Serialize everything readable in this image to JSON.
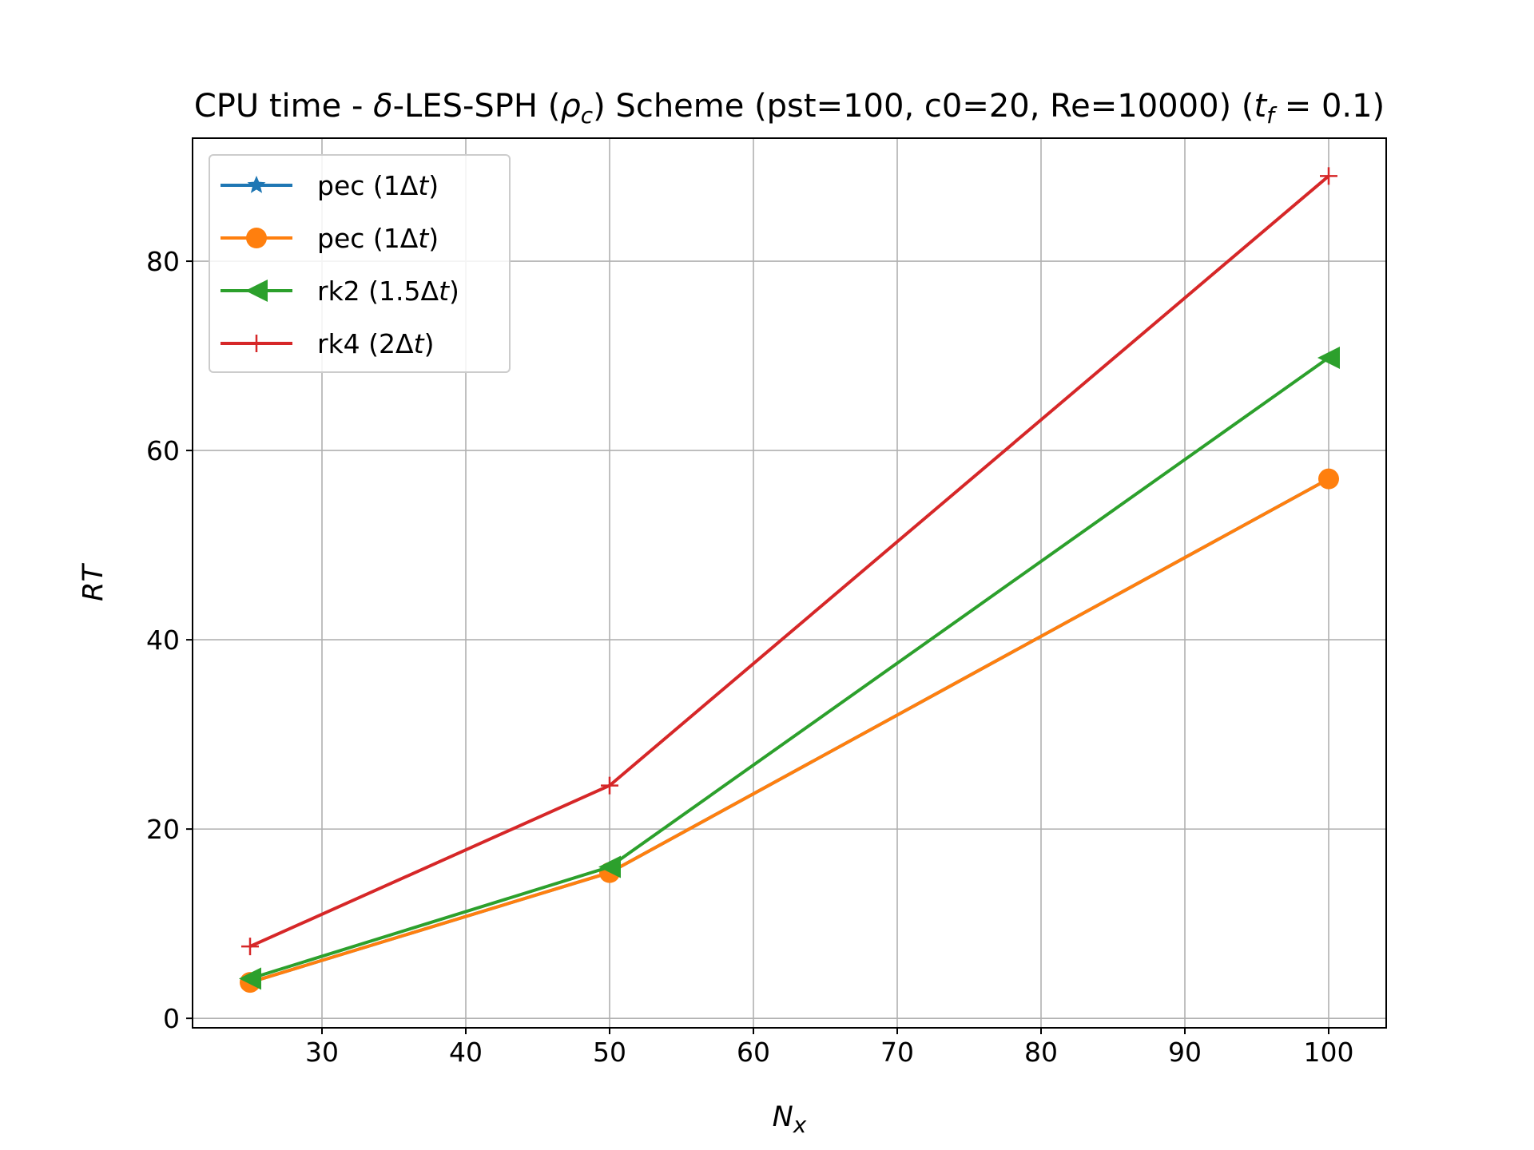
{
  "chart_data": {
    "type": "line",
    "title": "CPU time - δ-LES-SPH (ρc) Scheme (pst=100, c0=20, Re=10000) (tf = 0.1)",
    "xlabel": "Nx",
    "ylabel": "RT",
    "xlim": [
      21,
      104
    ],
    "ylim": [
      -1,
      93
    ],
    "xticks": [
      30,
      40,
      50,
      60,
      70,
      80,
      90,
      100
    ],
    "yticks": [
      0,
      20,
      40,
      60,
      80
    ],
    "grid": true,
    "legend_position": "upper left",
    "x": [
      25,
      50,
      100
    ],
    "series": [
      {
        "name": "pec (1Δt)",
        "marker": "star",
        "color": "#1f77b4",
        "values": [
          3.8,
          15.4,
          57.0
        ]
      },
      {
        "name": "pec (1Δt)",
        "marker": "circle",
        "color": "#ff7f0e",
        "values": [
          3.8,
          15.4,
          57.0
        ]
      },
      {
        "name": "rk2 (1.5Δt)",
        "marker": "triangle-left",
        "color": "#2ca02c",
        "values": [
          4.2,
          16.0,
          69.8
        ]
      },
      {
        "name": "rk4 (2Δt)",
        "marker": "plus",
        "color": "#d62728",
        "values": [
          7.6,
          24.6,
          89.0
        ]
      }
    ]
  }
}
